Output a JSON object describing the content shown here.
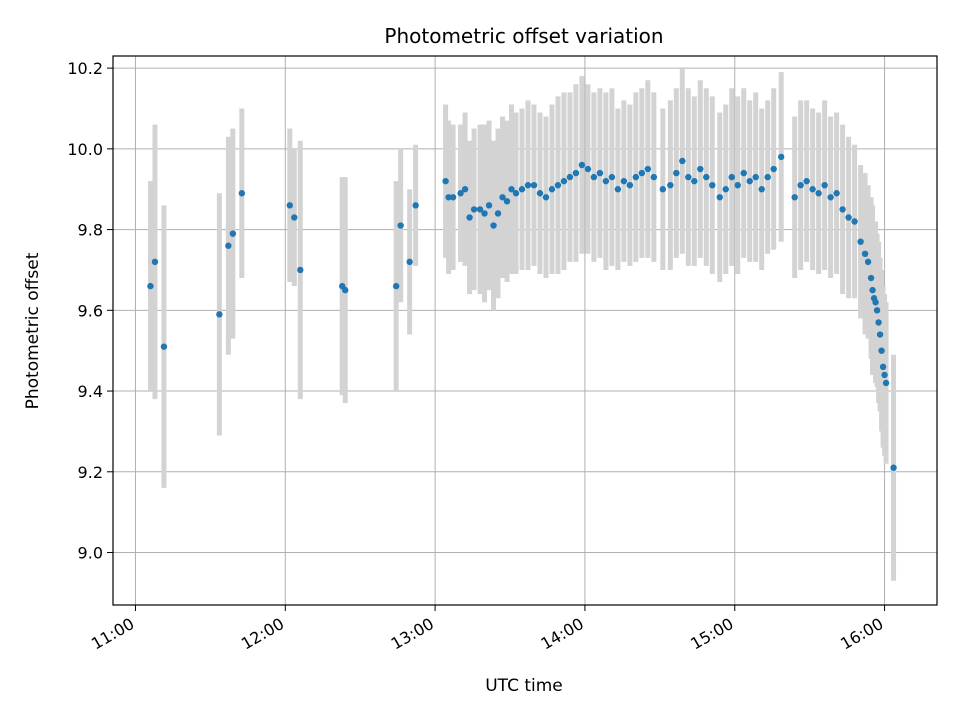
{
  "chart_data": {
    "type": "scatter",
    "title": "Photometric offset variation",
    "xlabel": "UTC time",
    "ylabel": "Photometric offset",
    "x_unit": "hours UTC",
    "xlim": [
      10.85,
      16.35
    ],
    "ylim": [
      8.87,
      10.23
    ],
    "x_ticks": [
      11,
      12,
      13,
      14,
      15,
      16
    ],
    "x_tick_labels": [
      "11:00",
      "12:00",
      "13:00",
      "14:00",
      "15:00",
      "16:00"
    ],
    "y_ticks": [
      9.0,
      9.2,
      9.4,
      9.6,
      9.8,
      10.0,
      10.2
    ],
    "y_tick_labels": [
      "9.0",
      "9.2",
      "9.4",
      "9.6",
      "9.8",
      "10.0",
      "10.2"
    ],
    "grid": true,
    "colors": {
      "points": "#1f77b4",
      "errorbars": "#d3d3d3",
      "grid": "#b0b0b0"
    },
    "series": [
      {
        "x": [
          11.1,
          11.13,
          11.19,
          11.56,
          11.62,
          11.65,
          11.71,
          12.03,
          12.06,
          12.1,
          12.38,
          12.4,
          12.74,
          12.77,
          12.83,
          12.87,
          13.07,
          13.09,
          13.12,
          13.17,
          13.2,
          13.23,
          13.26,
          13.3,
          13.33,
          13.36,
          13.39,
          13.42,
          13.45,
          13.48,
          13.51,
          13.54,
          13.58,
          13.62,
          13.66,
          13.7,
          13.74,
          13.78,
          13.82,
          13.86,
          13.9,
          13.94,
          13.98,
          14.02,
          14.06,
          14.1,
          14.14,
          14.18,
          14.22,
          14.26,
          14.3,
          14.34,
          14.38,
          14.42,
          14.46,
          14.52,
          14.57,
          14.61,
          14.65,
          14.69,
          14.73,
          14.77,
          14.81,
          14.85,
          14.9,
          14.94,
          14.98,
          15.02,
          15.06,
          15.1,
          15.14,
          15.18,
          15.22,
          15.26,
          15.31,
          15.4,
          15.44,
          15.48,
          15.52,
          15.56,
          15.6,
          15.64,
          15.68,
          15.72,
          15.76,
          15.8,
          15.84,
          15.87,
          15.89,
          15.91,
          15.92,
          15.93,
          15.94,
          15.95,
          15.96,
          15.97,
          15.98,
          15.99,
          16.0,
          16.01,
          16.06
        ],
        "y": [
          9.66,
          9.72,
          9.51,
          9.59,
          9.76,
          9.79,
          9.89,
          9.86,
          9.83,
          9.7,
          9.66,
          9.65,
          9.66,
          9.81,
          9.72,
          9.86,
          9.92,
          9.88,
          9.88,
          9.89,
          9.9,
          9.83,
          9.85,
          9.85,
          9.84,
          9.86,
          9.81,
          9.84,
          9.88,
          9.87,
          9.9,
          9.89,
          9.9,
          9.91,
          9.91,
          9.89,
          9.88,
          9.9,
          9.91,
          9.92,
          9.93,
          9.94,
          9.96,
          9.95,
          9.93,
          9.94,
          9.92,
          9.93,
          9.9,
          9.92,
          9.91,
          9.93,
          9.94,
          9.95,
          9.93,
          9.9,
          9.91,
          9.94,
          9.97,
          9.93,
          9.92,
          9.95,
          9.93,
          9.91,
          9.88,
          9.9,
          9.93,
          9.91,
          9.94,
          9.92,
          9.93,
          9.9,
          9.93,
          9.95,
          9.98,
          9.88,
          9.91,
          9.92,
          9.9,
          9.89,
          9.91,
          9.88,
          9.89,
          9.85,
          9.83,
          9.82,
          9.77,
          9.74,
          9.72,
          9.68,
          9.65,
          9.63,
          9.62,
          9.6,
          9.57,
          9.54,
          9.5,
          9.46,
          9.44,
          9.42,
          9.21
        ],
        "err": [
          0.26,
          0.34,
          0.35,
          0.3,
          0.27,
          0.26,
          0.21,
          0.19,
          0.17,
          0.32,
          0.27,
          0.28,
          0.26,
          0.19,
          0.18,
          0.15,
          0.19,
          0.19,
          0.18,
          0.17,
          0.19,
          0.19,
          0.2,
          0.21,
          0.22,
          0.21,
          0.21,
          0.21,
          0.2,
          0.2,
          0.21,
          0.2,
          0.2,
          0.21,
          0.2,
          0.2,
          0.2,
          0.21,
          0.22,
          0.22,
          0.21,
          0.22,
          0.22,
          0.21,
          0.21,
          0.21,
          0.22,
          0.22,
          0.2,
          0.2,
          0.2,
          0.21,
          0.21,
          0.22,
          0.21,
          0.2,
          0.21,
          0.21,
          0.23,
          0.22,
          0.21,
          0.22,
          0.22,
          0.22,
          0.21,
          0.21,
          0.22,
          0.22,
          0.21,
          0.2,
          0.21,
          0.2,
          0.19,
          0.2,
          0.21,
          0.2,
          0.21,
          0.2,
          0.2,
          0.2,
          0.21,
          0.2,
          0.2,
          0.21,
          0.2,
          0.19,
          0.19,
          0.2,
          0.19,
          0.2,
          0.21,
          0.19,
          0.2,
          0.19,
          0.2,
          0.19,
          0.2,
          0.2,
          0.2,
          0.2,
          0.28
        ]
      }
    ]
  }
}
